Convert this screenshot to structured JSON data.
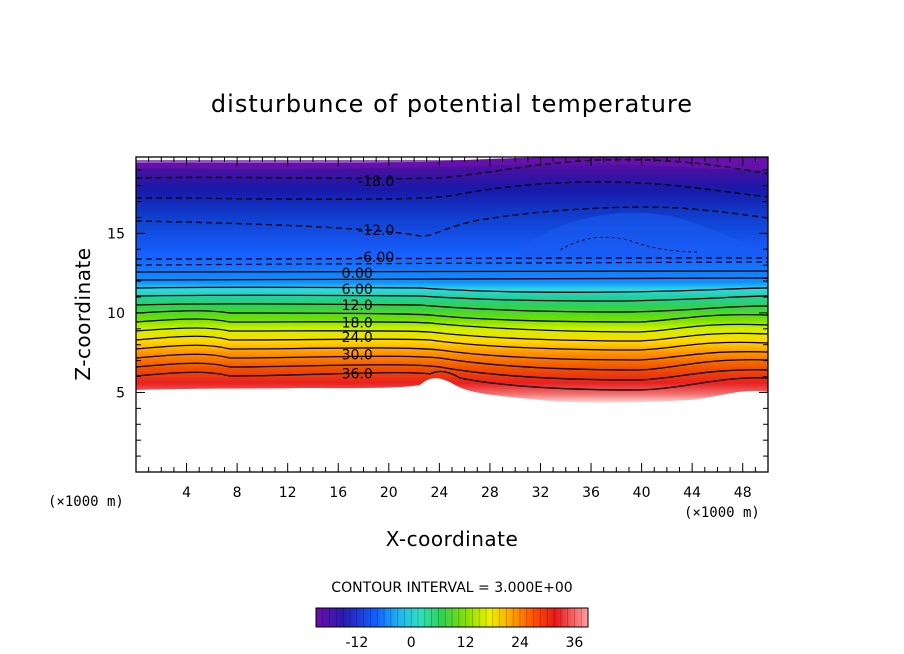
{
  "chart_data": {
    "type": "contour",
    "title": "disturbunce of potential temperature",
    "xlabel": "X-coordinate",
    "ylabel": "Z-coordinate",
    "x_unit": "(×1000 m)",
    "y_unit": "(×1000 m)",
    "xlim": [
      0,
      50
    ],
    "ylim": [
      0,
      19.8
    ],
    "xticks": [
      4,
      8,
      12,
      16,
      20,
      24,
      28,
      32,
      36,
      40,
      44,
      48
    ],
    "yticks": [
      5,
      10,
      15
    ],
    "contour_interval_text": "CONTOUR INTERVAL = 3.000E+00",
    "contour_interval": 3.0,
    "contour_labels": [
      {
        "text": "-18.0",
        "x": 19,
        "z": 18.3,
        "value": -18
      },
      {
        "text": "-12.0",
        "x": 19,
        "z": 15.2,
        "value": -12
      },
      {
        "text": "-6.00",
        "x": 19,
        "z": 13.5,
        "value": -6
      },
      {
        "text": "0.00",
        "x": 17.5,
        "z": 12.5,
        "value": 0
      },
      {
        "text": "6.00",
        "x": 17.5,
        "z": 11.5,
        "value": 6
      },
      {
        "text": "12.0",
        "x": 17.5,
        "z": 10.5,
        "value": 12
      },
      {
        "text": "18.0",
        "x": 17.5,
        "z": 9.4,
        "value": 18
      },
      {
        "text": "24.0",
        "x": 17.5,
        "z": 8.5,
        "value": 24
      },
      {
        "text": "30.0",
        "x": 17.5,
        "z": 7.4,
        "value": 30
      },
      {
        "text": "36.0",
        "x": 17.5,
        "z": 6.2,
        "value": 36
      }
    ],
    "colorbar": {
      "ticks": [
        "-12",
        "0",
        "12",
        "24",
        "36"
      ],
      "tick_values": [
        -12,
        0,
        12,
        24,
        36
      ],
      "range": [
        -21,
        39
      ]
    }
  }
}
